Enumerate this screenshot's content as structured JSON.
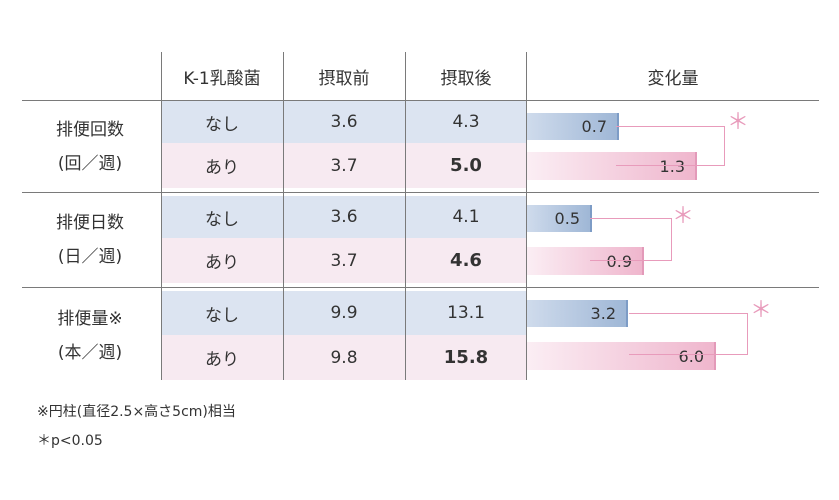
{
  "header": {
    "group": "K-1乳酸菌",
    "before": "摂取前",
    "after": "摂取後",
    "change": "変化量"
  },
  "rows": [
    {
      "label": [
        "排便回数",
        "(回／週)"
      ],
      "none": {
        "group": "なし",
        "before": "3.6",
        "after": "4.3",
        "change": "0.7"
      },
      "with": {
        "group": "あり",
        "before": "3.7",
        "after": "5.0",
        "change": "1.3"
      },
      "significance": "＊"
    },
    {
      "label": [
        "排便日数",
        "(日／週)"
      ],
      "none": {
        "group": "なし",
        "before": "3.6",
        "after": "4.1",
        "change": "0.5"
      },
      "with": {
        "group": "あり",
        "before": "3.7",
        "after": "4.6",
        "change": "0.9"
      },
      "significance": "＊"
    },
    {
      "label": [
        "排便量※",
        "(本／週)"
      ],
      "none": {
        "group": "なし",
        "before": "9.9",
        "after": "13.1",
        "change": "3.2"
      },
      "with": {
        "group": "あり",
        "before": "9.8",
        "after": "15.8",
        "change": "6.0"
      },
      "significance": "＊"
    }
  ],
  "footnotes": {
    "note1": "※円柱(直径2.5×高さ5cm)相当",
    "note2": "＊p<0.05"
  },
  "colors": {
    "none_row": "#dce4f1",
    "with_row": "#f7eaf1",
    "none_bar": "#9fb7d6",
    "with_bar": "#efb6cd",
    "significance": "#e89bbb"
  },
  "chart_data": {
    "type": "bar",
    "categories": [
      "排便回数",
      "排便日数",
      "排便量"
    ],
    "series": [
      {
        "name": "なし",
        "values": [
          0.7,
          0.5,
          3.2
        ]
      },
      {
        "name": "あり",
        "values": [
          1.3,
          0.9,
          6.0
        ]
      }
    ]
  }
}
